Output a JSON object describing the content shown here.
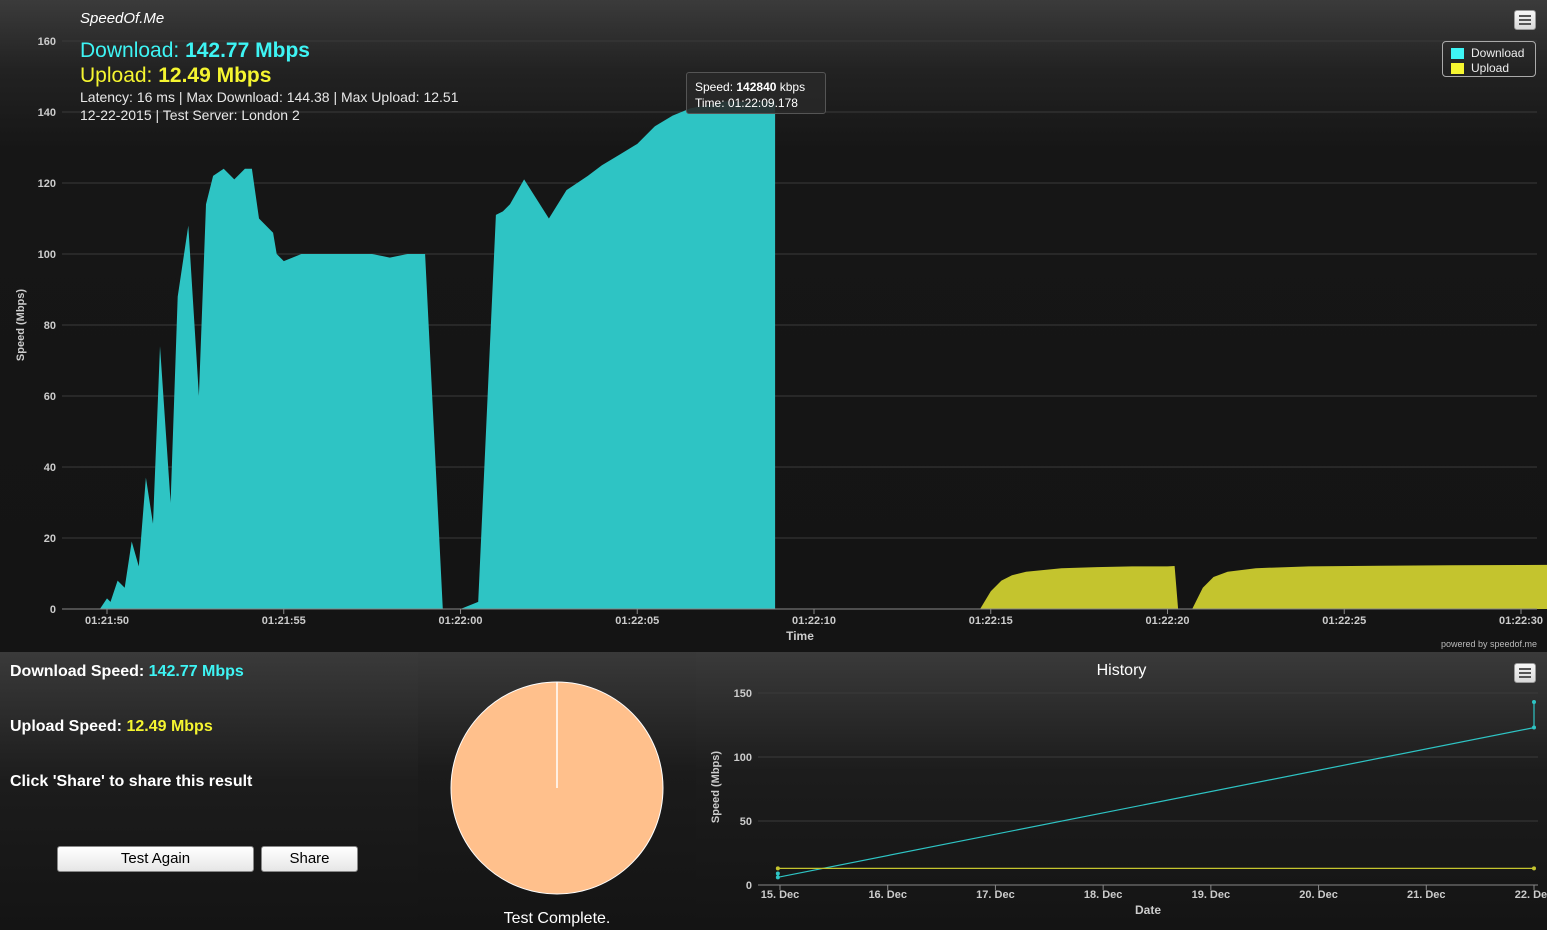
{
  "app": {
    "brand": "SpeedOf.Me",
    "powered_by": "powered by speedof.me"
  },
  "summary": {
    "download_label": "Download: ",
    "download_value": "142.77 Mbps",
    "upload_label": "Upload: ",
    "upload_value": "12.49 Mbps",
    "meta_line1": "Latency: 16 ms | Max Download: 144.38 | Max Upload: 12.51",
    "meta_line2": "12-22-2015 | Test Server: London 2"
  },
  "legend": {
    "download": "Download",
    "upload": "Upload"
  },
  "tooltip": {
    "speed_label": "Speed: ",
    "speed_value": "142840",
    "speed_unit": " kbps",
    "time_label": "Time: ",
    "time_value": "01:22:09.178"
  },
  "colors": {
    "download": "#2ec4c4",
    "upload": "#c4c42e",
    "download_text": "#3ef4f4",
    "upload_text": "#f5f530",
    "pie": "#ffc08c"
  },
  "chart_data": [
    {
      "type": "area",
      "ylabel": "Speed (Mbps)",
      "xlabel": "Time",
      "ylim": [
        0,
        160
      ],
      "yticks": [
        "0",
        "20",
        "40",
        "60",
        "80",
        "100",
        "120",
        "140",
        "160"
      ],
      "xticks": [
        "01:21:50",
        "01:21:55",
        "01:22:00",
        "01:22:05",
        "01:22:10",
        "01:22:15",
        "01:22:20",
        "01:22:25",
        "01:22:30"
      ],
      "x_unit": "seconds after 01:21:50",
      "series": [
        {
          "name": "Download",
          "x": [
            -0.2,
            0.0,
            0.1,
            0.3,
            0.5,
            0.7,
            0.9,
            1.1,
            1.3,
            1.5,
            1.8,
            2.0,
            2.3,
            2.6,
            2.8,
            3.0,
            3.3,
            3.6,
            3.9,
            4.1,
            4.3,
            4.7,
            4.8,
            5.0,
            5.5,
            6.0,
            6.5,
            7.0,
            7.5,
            8.0,
            8.5,
            9.0,
            9.5,
            10.0,
            10.5,
            11.0,
            11.2,
            11.4,
            11.8,
            12.5,
            13.0,
            13.3,
            13.6,
            14.0,
            14.5,
            15.0,
            15.5,
            16.0,
            16.5,
            17.0,
            17.5,
            18.0,
            18.5,
            18.9
          ],
          "values": [
            0,
            3,
            2,
            8,
            6,
            19,
            12,
            37,
            24,
            74,
            30,
            88,
            108,
            60,
            114,
            122,
            124,
            121,
            124,
            124,
            110,
            106,
            100,
            98,
            100,
            100,
            100,
            100,
            100,
            99,
            100,
            100,
            0,
            0,
            2,
            111,
            112,
            114,
            121,
            110,
            118,
            120,
            122,
            125,
            128,
            131,
            136,
            139,
            141,
            142,
            143,
            142.84,
            143,
            143
          ]
        },
        {
          "name": "Upload",
          "x": [
            24.7,
            25.0,
            25.3,
            25.6,
            26.0,
            27.0,
            28.0,
            29.0,
            30.0,
            30.2,
            30.3,
            30.7,
            31.0,
            31.3,
            31.7,
            32.5,
            34.0,
            36.0,
            38.0,
            40.0,
            41.7
          ],
          "values": [
            0,
            5,
            8,
            9.5,
            10.5,
            11.5,
            11.8,
            12,
            12,
            12.1,
            0,
            0,
            6,
            9,
            10.5,
            11.5,
            12,
            12.2,
            12.3,
            12.4,
            12.5
          ]
        }
      ]
    },
    {
      "type": "pie",
      "values": [
        100
      ],
      "caption": "Test Complete."
    },
    {
      "type": "line",
      "title": "History",
      "ylabel": "Speed (Mbps)",
      "xlabel": "Date",
      "ylim": [
        0,
        150
      ],
      "yticks": [
        "0",
        "50",
        "100",
        "150"
      ],
      "xticks": [
        "15. Dec",
        "16. Dec",
        "17. Dec",
        "18. Dec",
        "19. Dec",
        "20. Dec",
        "21. Dec",
        "22. Dec"
      ],
      "x_unit": "days after 15. Dec",
      "series": [
        {
          "name": "Download",
          "x": [
            -0.02,
            -0.02,
            7.0,
            7.0
          ],
          "values": [
            9,
            6,
            123,
            143
          ]
        },
        {
          "name": "Upload",
          "x": [
            -0.02,
            7.0
          ],
          "values": [
            13,
            13
          ]
        }
      ]
    }
  ],
  "bottom": {
    "download_label": "Download Speed: ",
    "download_value": "142.77 Mbps",
    "upload_label": "Upload Speed: ",
    "upload_value": "12.49 Mbps",
    "share_hint": "Click 'Share' to share this result",
    "test_again": "Test Again",
    "share": "Share",
    "status": "Test Complete.",
    "history_title": "History"
  }
}
